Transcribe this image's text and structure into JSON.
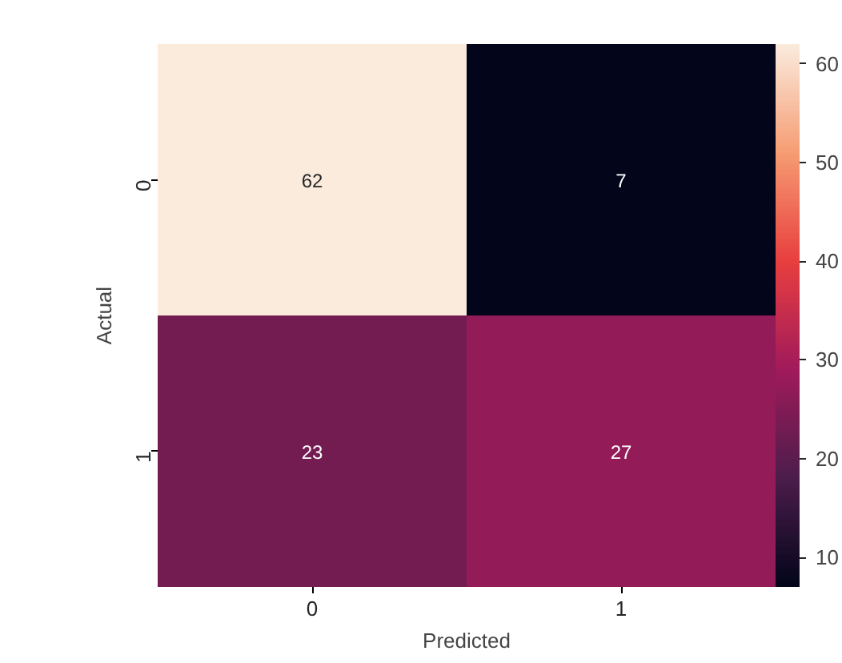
{
  "chart_data": {
    "type": "heatmap",
    "xlabel": "Predicted",
    "ylabel": "Actual",
    "categories": [
      "0",
      "1"
    ],
    "y_categories": [
      "0",
      "1"
    ],
    "cells": [
      [
        62,
        7
      ],
      [
        23,
        27
      ]
    ],
    "data_labels": true,
    "clim": [
      7,
      62
    ],
    "cticks": [
      10,
      20,
      30,
      40,
      50,
      60
    ]
  }
}
